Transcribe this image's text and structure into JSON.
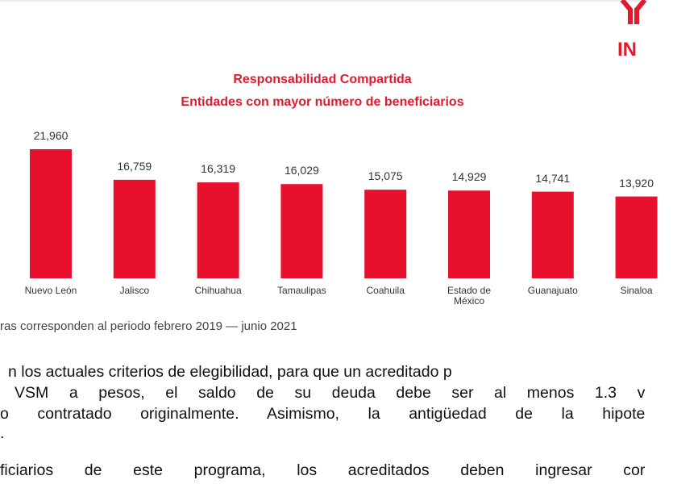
{
  "chart_data": {
    "type": "bar",
    "title": "Responsabilidad Compartida",
    "subtitle": "Entidades con mayor número de beneficiarios",
    "categories": [
      "Nuevo León",
      "Jalisco",
      "Chihuahua",
      "Tamaulipas",
      "Coahuila",
      "Estado de México",
      "Guanajuato",
      "Sinaloa"
    ],
    "values": [
      21960,
      16759,
      16319,
      16029,
      15075,
      14929,
      14741,
      13920
    ],
    "value_labels": [
      "21,960",
      "16,759",
      "16,319",
      "16,029",
      "15,075",
      "14,929",
      "14,741",
      "13,920"
    ],
    "color": "#e8112d",
    "note": "ras corresponden al periodo febrero 2019 — junio 2021"
  },
  "logo": "IN",
  "paragraphs": [
    "n los actuales criterios de elegibilidad, para que un acreditado p",
    "VSM a pesos, el saldo de su deuda debe ser al menos 1.3 v",
    "o contratado originalmente. Asimismo, la antigüedad de la hipote",
    ".",
    "ficiarios de este programa, los acreditados deben ingresar cor"
  ]
}
